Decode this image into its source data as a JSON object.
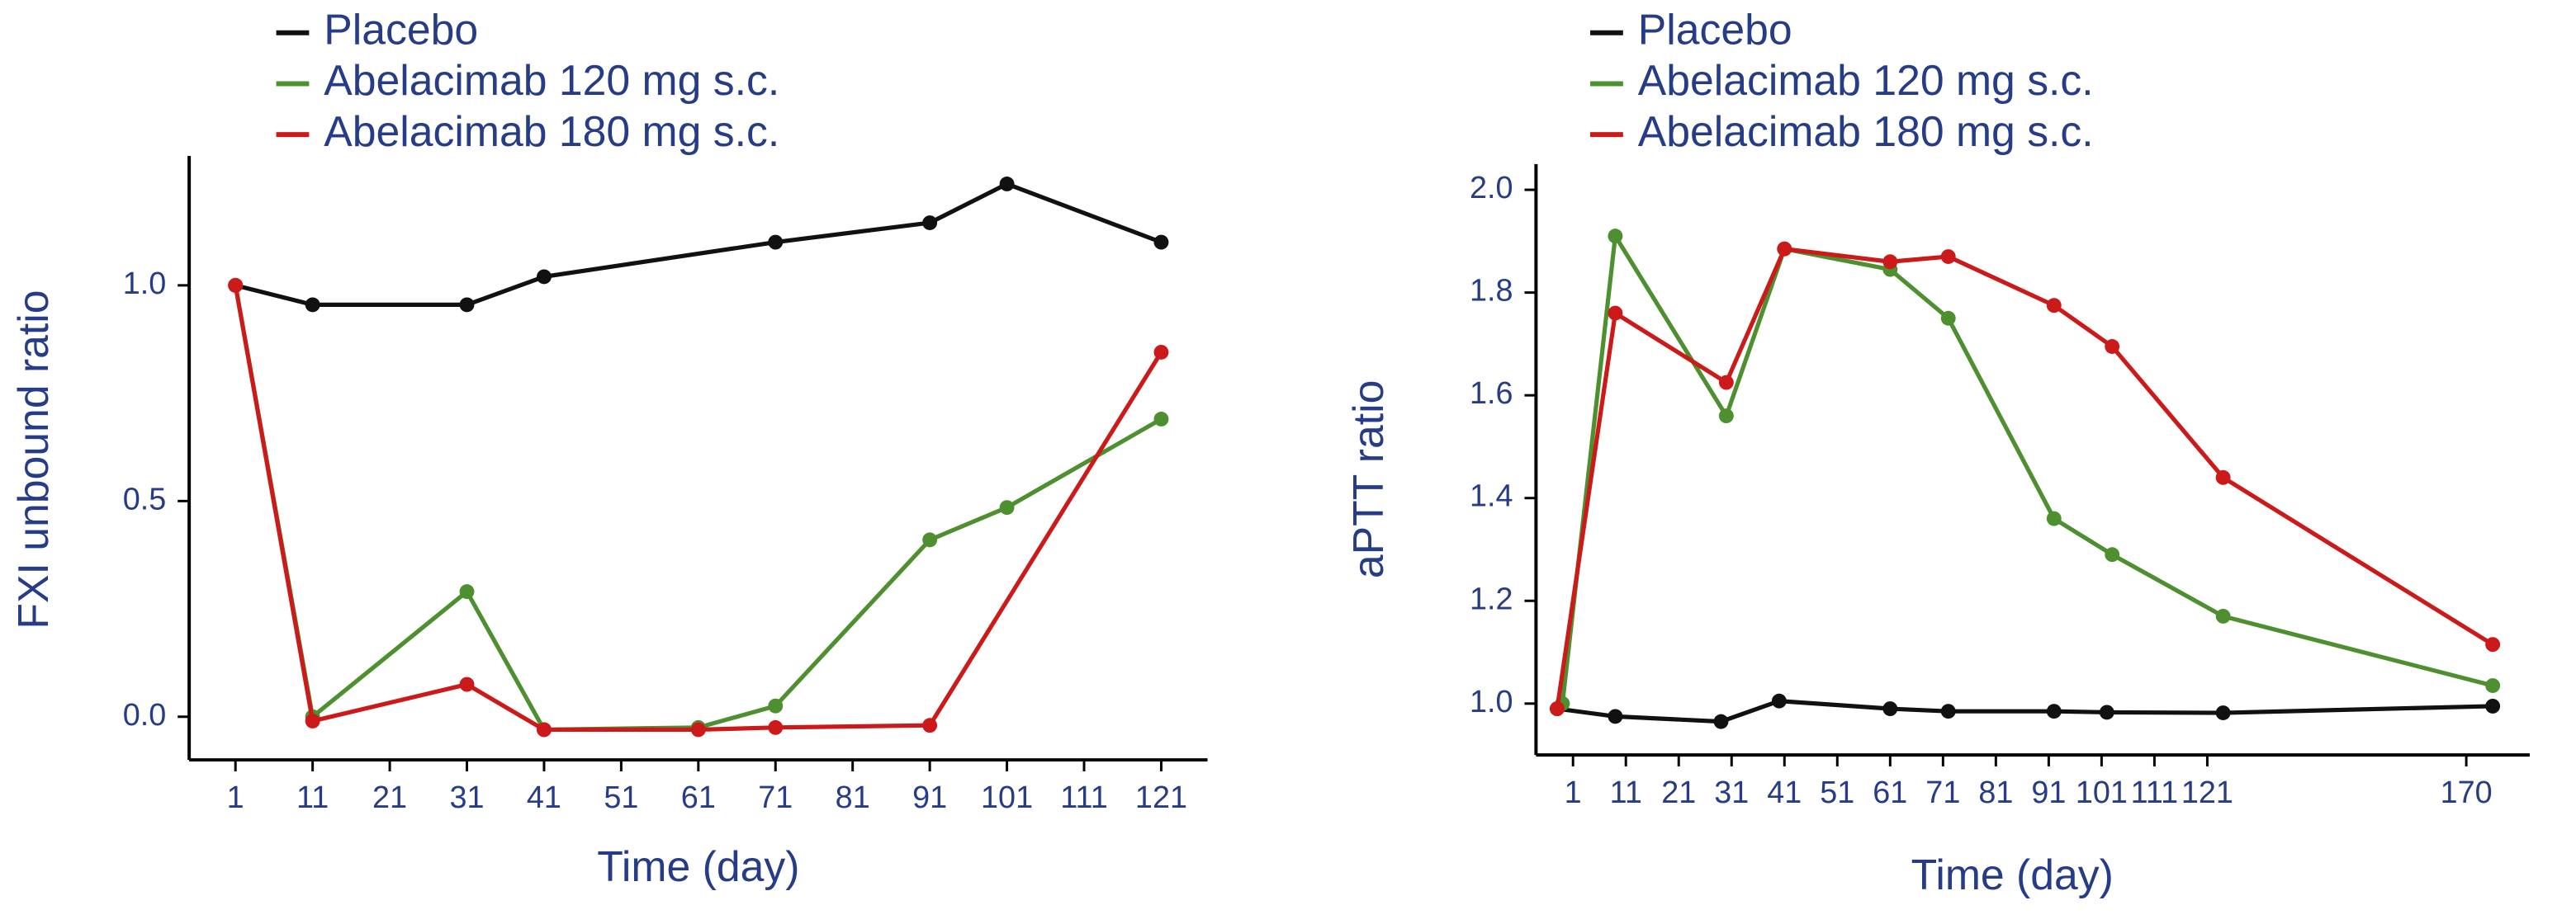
{
  "chart_data": [
    {
      "type": "line",
      "x_label": "Time (day)",
      "y_label": "FXI unbound ratio",
      "legend": "upper left",
      "grid": false,
      "xlim": [
        -5,
        127
      ],
      "xticks": [
        1,
        11,
        21,
        31,
        41,
        51,
        61,
        71,
        81,
        91,
        101,
        111,
        121
      ],
      "ylim": [
        -0.1,
        1.3
      ],
      "yticks": [
        {
          "value": 0,
          "label": "0.0"
        },
        0.5,
        {
          "value": 1,
          "label": "1.0"
        }
      ],
      "series": [
        {
          "name": "Placebo",
          "color": "#111111",
          "x": [
            1,
            11,
            31,
            41,
            71,
            91,
            101,
            121
          ],
          "values": [
            1.0,
            0.955,
            0.955,
            1.02,
            1.1,
            1.145,
            1.235,
            1.1
          ]
        },
        {
          "name": "Abelacimab 120 mg s.c.",
          "color": "#4e8f30",
          "x": [
            1,
            11,
            31,
            41,
            61,
            71,
            91,
            101,
            121
          ],
          "values": [
            1.0,
            0.0,
            0.29,
            -0.03,
            -0.025,
            0.025,
            0.41,
            0.485,
            0.69
          ]
        },
        {
          "name": "Abelacimab 180 mg s.c.",
          "color": "#cc1a1a",
          "x": [
            1,
            11,
            31,
            41,
            61,
            71,
            91,
            121
          ],
          "values": [
            1.0,
            -0.01,
            0.075,
            -0.03,
            -0.03,
            -0.025,
            -0.02,
            0.845
          ]
        }
      ]
    },
    {
      "type": "line",
      "x_label": "Time (day)",
      "y_label": "aPTT ratio",
      "legend": "upper left",
      "grid": false,
      "xlim": [
        -6,
        182
      ],
      "xticks": [
        1,
        11,
        21,
        31,
        41,
        51,
        61,
        71,
        81,
        91,
        101,
        111,
        121,
        170
      ],
      "ylim": [
        0.9,
        2.05
      ],
      "yticks": [
        {
          "value": 1,
          "label": "1.0"
        },
        1.2,
        1.4,
        1.6,
        1.8,
        {
          "value": 2,
          "label": "2.0"
        }
      ],
      "series": [
        {
          "name": "Placebo",
          "color": "#111111",
          "x": [
            -2,
            9,
            29,
            40,
            61,
            72,
            92,
            102,
            124,
            175
          ],
          "values": [
            0.99,
            0.975,
            0.965,
            1.005,
            0.99,
            0.985,
            0.985,
            0.983,
            0.982,
            0.995
          ]
        },
        {
          "name": "Abelacimab 120 mg s.c.",
          "color": "#4e8f30",
          "x": [
            -1,
            9,
            30,
            41,
            61,
            72,
            92,
            103,
            124,
            175
          ],
          "values": [
            1.0,
            1.91,
            1.56,
            1.885,
            1.845,
            1.75,
            1.36,
            1.29,
            1.17,
            1.035
          ]
        },
        {
          "name": "Abelacimab 180 mg s.c.",
          "color": "#cc1a1a",
          "x": [
            -2,
            9,
            30,
            41,
            61,
            72,
            92,
            103,
            124,
            175
          ],
          "values": [
            0.99,
            1.76,
            1.625,
            1.885,
            1.86,
            1.87,
            1.775,
            1.695,
            1.44,
            1.115
          ]
        }
      ]
    }
  ]
}
